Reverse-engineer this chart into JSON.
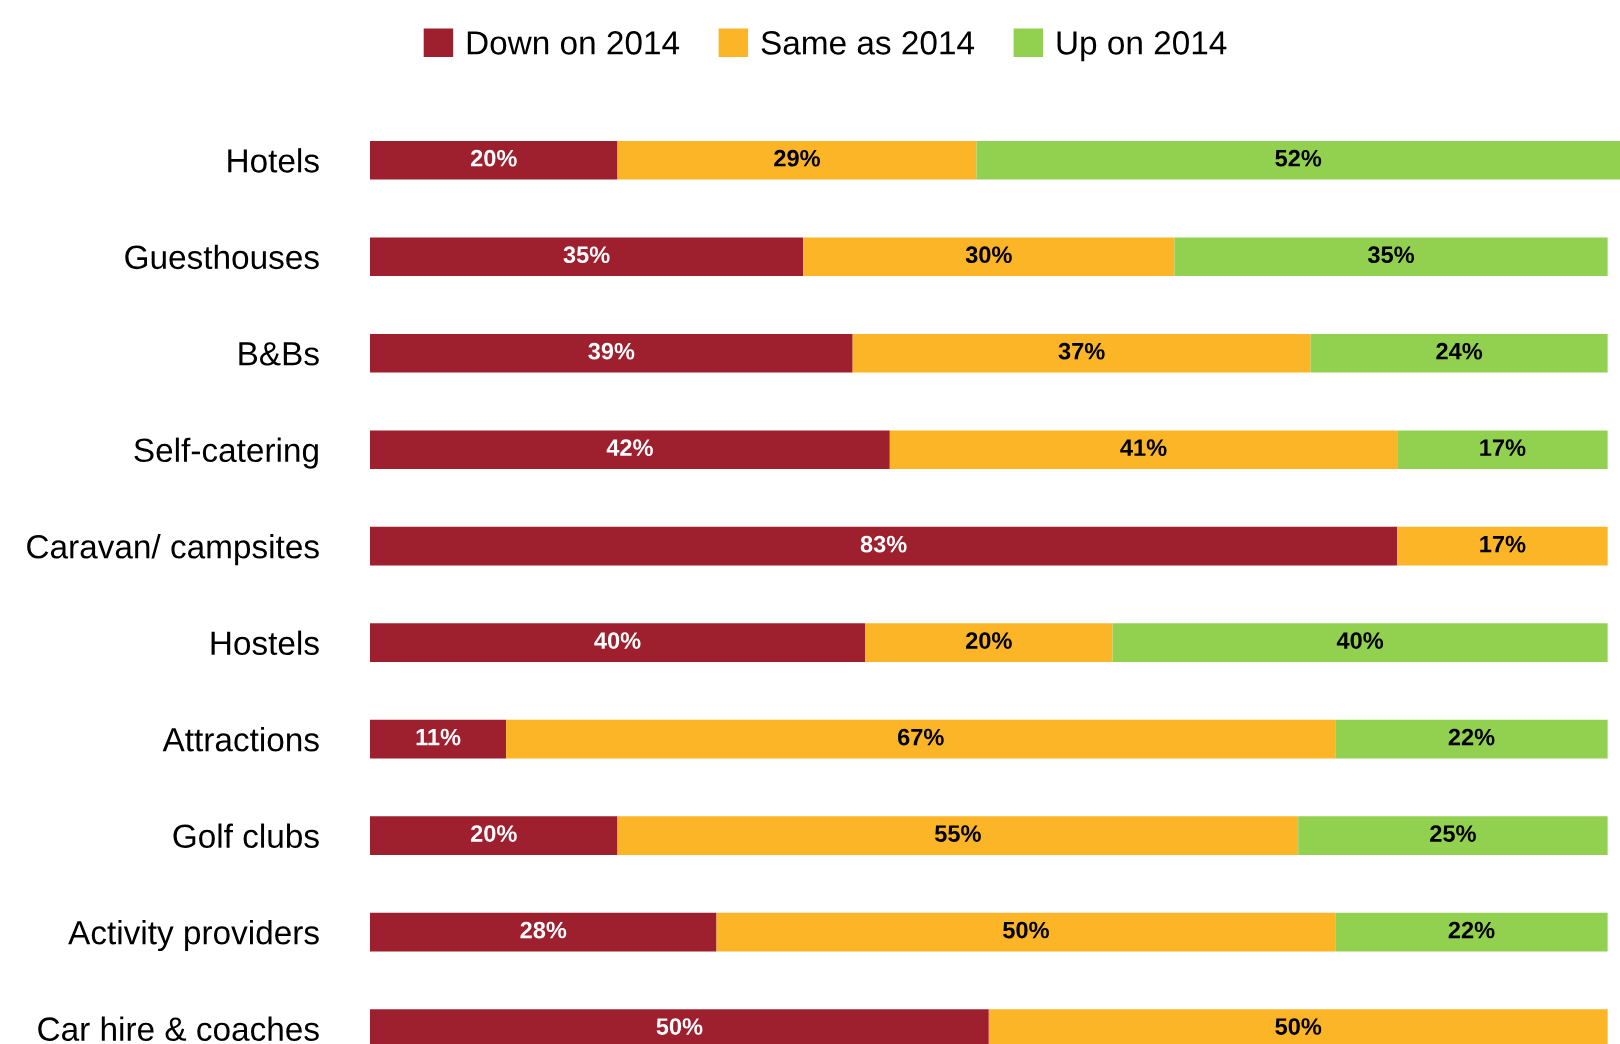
{
  "chart_data": {
    "type": "bar",
    "orientation": "horizontal",
    "stacked": true,
    "legend": "top",
    "grid": false,
    "tick_labels": "y",
    "categories": [
      "Hotels",
      "Guesthouses",
      "B&Bs",
      "Self-catering",
      "Caravan/ campsites",
      "Hostels",
      "Attractions",
      "Golf clubs",
      "Activity providers",
      "Car hire & coaches"
    ],
    "series": [
      {
        "name": "Down on 2014",
        "color": "#9e1f2e",
        "values": [
          20,
          35,
          39,
          42,
          83,
          40,
          11,
          20,
          28,
          50
        ],
        "value_labels": [
          "20%",
          "35%",
          "39%",
          "42%",
          "83%",
          "40%",
          "11%",
          "20%",
          "28%",
          "50%"
        ]
      },
      {
        "name": "Same as 2014",
        "color": "#fbb526",
        "values": [
          29,
          30,
          37,
          41,
          17,
          20,
          67,
          55,
          50,
          50
        ],
        "value_labels": [
          "29%",
          "30%",
          "37%",
          "41%",
          "17%",
          "20%",
          "67%",
          "55%",
          "50%",
          "50%"
        ]
      },
      {
        "name": "Up on 2014",
        "color": "#92d050",
        "values": [
          52,
          35,
          24,
          17,
          null,
          40,
          22,
          25,
          22,
          null
        ],
        "value_labels": [
          "52%",
          "35%",
          "24%",
          "17%",
          null,
          "40%",
          "22%",
          "25%",
          "22%",
          null
        ]
      }
    ]
  }
}
